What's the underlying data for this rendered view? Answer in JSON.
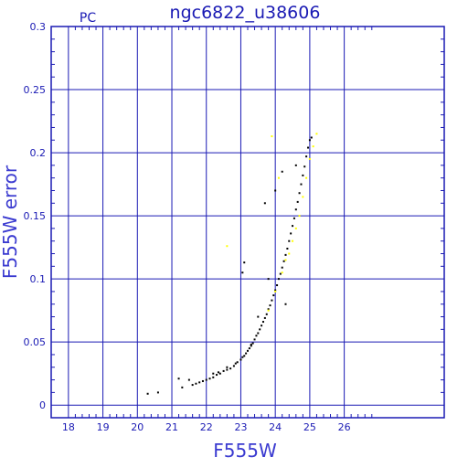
{
  "chart_data": {
    "type": "scatter",
    "title": "ngc6822_u38606",
    "tag": "PC",
    "xlabel": "F555W",
    "ylabel": "F555W error",
    "xlim": [
      17.5,
      28.9
    ],
    "ylim": [
      -0.01,
      0.3
    ],
    "xticks": [
      18,
      19,
      20,
      21,
      22,
      23,
      24,
      25,
      26
    ],
    "xtick_labels": [
      "18",
      "19",
      "20",
      "21",
      "22",
      "23",
      "24",
      "25",
      "26"
    ],
    "yticks": [
      0,
      0.05,
      0.1,
      0.15,
      0.2,
      0.25,
      0.3
    ],
    "ytick_labels": [
      "0",
      "0.05",
      "0.1",
      "0.15",
      "0.2",
      "0.25",
      "0.3"
    ],
    "grid": true,
    "colors": {
      "axes": "#1a1ab4",
      "grid": "#1a1ab4",
      "series_a": "#000000",
      "series_b": "#ffff00"
    },
    "series": [
      {
        "color": "#000000",
        "points": [
          [
            20.3,
            0.009
          ],
          [
            20.6,
            0.01
          ],
          [
            21.2,
            0.021
          ],
          [
            21.3,
            0.014
          ],
          [
            21.5,
            0.02
          ],
          [
            21.6,
            0.016
          ],
          [
            21.7,
            0.017
          ],
          [
            21.8,
            0.018
          ],
          [
            21.9,
            0.019
          ],
          [
            22.0,
            0.02
          ],
          [
            22.1,
            0.021
          ],
          [
            22.2,
            0.022
          ],
          [
            22.3,
            0.024
          ],
          [
            22.35,
            0.026
          ],
          [
            22.4,
            0.025
          ],
          [
            22.5,
            0.027
          ],
          [
            22.6,
            0.028
          ],
          [
            22.7,
            0.029
          ],
          [
            22.8,
            0.031
          ],
          [
            22.85,
            0.033
          ],
          [
            22.9,
            0.034
          ],
          [
            23.0,
            0.036
          ],
          [
            23.05,
            0.038
          ],
          [
            23.1,
            0.039
          ],
          [
            23.15,
            0.041
          ],
          [
            23.2,
            0.043
          ],
          [
            23.25,
            0.045
          ],
          [
            23.3,
            0.047
          ],
          [
            23.35,
            0.049
          ],
          [
            23.4,
            0.052
          ],
          [
            23.45,
            0.055
          ],
          [
            23.5,
            0.057
          ],
          [
            23.55,
            0.06
          ],
          [
            23.6,
            0.063
          ],
          [
            23.65,
            0.066
          ],
          [
            23.7,
            0.069
          ],
          [
            23.75,
            0.072
          ],
          [
            23.8,
            0.076
          ],
          [
            23.85,
            0.079
          ],
          [
            23.9,
            0.083
          ],
          [
            23.95,
            0.087
          ],
          [
            24.0,
            0.091
          ],
          [
            24.05,
            0.095
          ],
          [
            24.1,
            0.1
          ],
          [
            24.15,
            0.104
          ],
          [
            24.2,
            0.109
          ],
          [
            24.25,
            0.114
          ],
          [
            24.3,
            0.119
          ],
          [
            24.35,
            0.124
          ],
          [
            24.4,
            0.13
          ],
          [
            24.45,
            0.136
          ],
          [
            24.5,
            0.142
          ],
          [
            24.55,
            0.148
          ],
          [
            24.6,
            0.155
          ],
          [
            24.65,
            0.161
          ],
          [
            24.7,
            0.168
          ],
          [
            24.75,
            0.175
          ],
          [
            24.8,
            0.182
          ],
          [
            24.85,
            0.189
          ],
          [
            24.9,
            0.197
          ],
          [
            24.95,
            0.204
          ],
          [
            25.0,
            0.21
          ],
          [
            25.05,
            0.212
          ],
          [
            23.1,
            0.113
          ],
          [
            23.05,
            0.105
          ],
          [
            23.7,
            0.16
          ],
          [
            23.8,
            0.1
          ],
          [
            24.2,
            0.185
          ],
          [
            24.0,
            0.17
          ],
          [
            22.2,
            0.025
          ],
          [
            22.6,
            0.03
          ],
          [
            23.3,
            0.048
          ],
          [
            23.5,
            0.07
          ],
          [
            24.3,
            0.08
          ],
          [
            24.6,
            0.19
          ]
        ]
      },
      {
        "color": "#ffff00",
        "points": [
          [
            22.6,
            0.126
          ],
          [
            23.9,
            0.213
          ],
          [
            24.1,
            0.18
          ],
          [
            24.3,
            0.115
          ],
          [
            24.4,
            0.12
          ],
          [
            24.5,
            0.13
          ],
          [
            24.6,
            0.14
          ],
          [
            24.7,
            0.15
          ],
          [
            24.8,
            0.165
          ],
          [
            24.9,
            0.18
          ],
          [
            25.0,
            0.195
          ],
          [
            25.1,
            0.205
          ],
          [
            25.2,
            0.215
          ],
          [
            24.2,
            0.105
          ],
          [
            24.0,
            0.09
          ],
          [
            23.8,
            0.075
          ]
        ]
      }
    ]
  }
}
